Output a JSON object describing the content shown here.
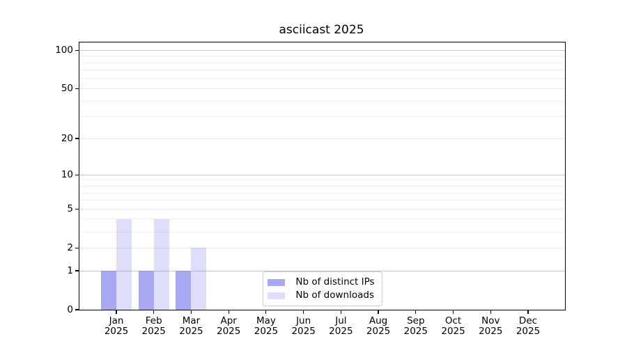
{
  "window": {
    "background": "#ffffff"
  },
  "chart_data": {
    "type": "bar",
    "title": "asciicast 2025",
    "months": [
      "Jan",
      "Feb",
      "Mar",
      "Apr",
      "May",
      "Jun",
      "Jul",
      "Aug",
      "Sep",
      "Oct",
      "Nov",
      "Dec"
    ],
    "year_label": "2025",
    "series": [
      {
        "name": "Nb of distinct IPs",
        "color": "rgba(136,136,238,0.72)",
        "values": [
          1,
          1,
          1,
          0,
          0,
          0,
          0,
          0,
          0,
          0,
          0,
          0
        ]
      },
      {
        "name": "Nb of downloads",
        "color": "rgba(136,136,238,0.28)",
        "values": [
          4,
          4,
          2,
          0,
          0,
          0,
          0,
          0,
          0,
          0,
          0,
          0
        ]
      }
    ],
    "yscale": "log1p",
    "ylim": [
      0,
      115
    ],
    "yticks": [
      0,
      1,
      2,
      5,
      10,
      20,
      50,
      100
    ],
    "yticks_minor": [
      3,
      4,
      6,
      7,
      8,
      9,
      30,
      40,
      60,
      70,
      80,
      90
    ],
    "decade_lines": [
      1,
      10,
      100
    ],
    "grid": "horizontal",
    "legend_position": "inside-bottom-center"
  },
  "colors": {
    "grid_decade": "#c6c6c6",
    "grid_mid": "#e9e9e9",
    "grid_minor": "#f0f0f0",
    "spine": "#000000",
    "text": "#000000",
    "legend_border": "#cccccc",
    "legend_bg": "rgba(255,255,255,0.85)"
  }
}
